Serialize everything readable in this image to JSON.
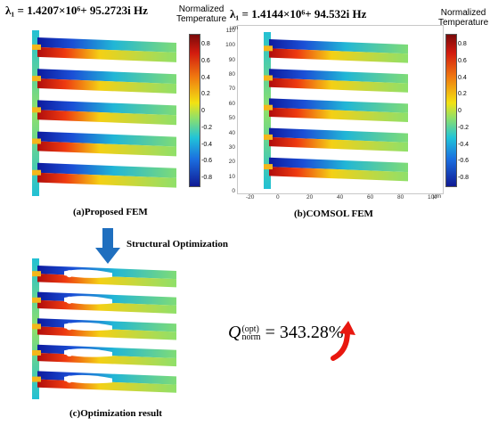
{
  "panel_a": {
    "eigenvalue": "λ₁ = 1.4207×10⁶+ 95.2723i Hz",
    "caption": "(a)Proposed FEM",
    "colorbar": {
      "title_line1": "Normalized",
      "title_line2": "Temperature",
      "ticks": [
        "0.8",
        "0.6",
        "0.4",
        "0.2",
        "0",
        "-0.2",
        "-0.4",
        "-0.6",
        "-0.8"
      ]
    }
  },
  "panel_b": {
    "eigenvalue": "λ₁ = 1.4144×10⁶+ 94.532i Hz",
    "caption": "(b)COMSOL FEM",
    "y_unit": "μm",
    "x_unit": "μm",
    "y_ticks": [
      "110",
      "100",
      "90",
      "80",
      "70",
      "60",
      "50",
      "40",
      "30",
      "20",
      "10",
      "0"
    ],
    "x_ticks": [
      "-20",
      "0",
      "20",
      "40",
      "60",
      "80",
      "100"
    ],
    "colorbar": {
      "title_line1": "Normalized",
      "title_line2": "Temperature",
      "ticks": [
        "0.8",
        "0.6",
        "0.4",
        "0.2",
        "0",
        "-0.2",
        "-0.4",
        "-0.6",
        "-0.8"
      ]
    }
  },
  "optimization": {
    "arrow_label": "Structural Optimization",
    "caption": "(c)Optimization result",
    "formula_value": "343.28%",
    "formula_base": "Q",
    "formula_sup": "(opt)",
    "formula_sub": "norm",
    "formula_eq": "= "
  },
  "colors": {
    "arrow_blue": "#1f6fbf",
    "arrow_red": "#e8170f"
  }
}
